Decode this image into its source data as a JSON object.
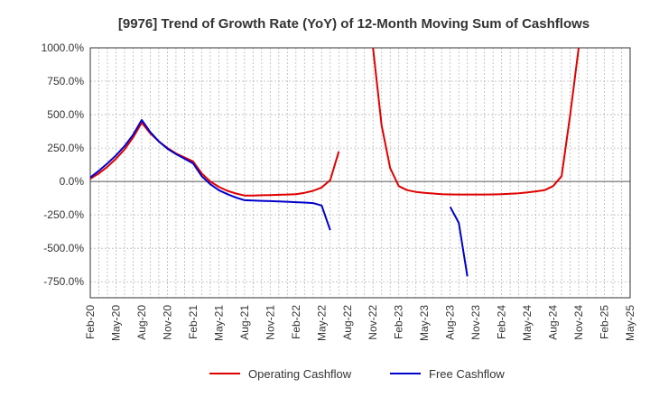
{
  "chart_data": {
    "type": "line",
    "title": "[9976]  Trend of Growth Rate (YoY) of 12-Month Moving Sum of Cashflows",
    "xlabel": "",
    "ylabel": "",
    "ylim": [
      -870,
      1000
    ],
    "yticks": [
      1000,
      750,
      500,
      250,
      0,
      -250,
      -500,
      -750
    ],
    "ytick_labels": [
      "1000.0%",
      "750.0%",
      "500.0%",
      "250.0%",
      "0.0%",
      "-250.0%",
      "-500.0%",
      "-750.0%"
    ],
    "xticks": [
      "Feb-20",
      "May-20",
      "Aug-20",
      "Nov-20",
      "Feb-21",
      "May-21",
      "Aug-21",
      "Nov-21",
      "Feb-22",
      "May-22",
      "Aug-22",
      "Nov-22",
      "Feb-23",
      "May-23",
      "Aug-23",
      "Nov-23",
      "Feb-24",
      "May-24",
      "Aug-24",
      "Nov-24",
      "Feb-25",
      "May-25"
    ],
    "x_range": [
      "2020-02",
      "2025-05"
    ],
    "grid": true,
    "legend_position": "bottom",
    "series": [
      {
        "name": "Operating Cashflow",
        "color": "#e00000",
        "points": [
          [
            "2020-02",
            20
          ],
          [
            "2020-03",
            60
          ],
          [
            "2020-04",
            110
          ],
          [
            "2020-05",
            170
          ],
          [
            "2020-06",
            240
          ],
          [
            "2020-07",
            330
          ],
          [
            "2020-08",
            440
          ],
          [
            "2020-09",
            360
          ],
          [
            "2020-10",
            300
          ],
          [
            "2020-11",
            250
          ],
          [
            "2020-12",
            210
          ],
          [
            "2021-01",
            180
          ],
          [
            "2021-02",
            150
          ],
          [
            "2021-03",
            60
          ],
          [
            "2021-04",
            0
          ],
          [
            "2021-05",
            -40
          ],
          [
            "2021-06",
            -70
          ],
          [
            "2021-07",
            -90
          ],
          [
            "2021-08",
            -105
          ],
          [
            "2021-09",
            -105
          ],
          [
            "2021-10",
            -103
          ],
          [
            "2021-11",
            -102
          ],
          [
            "2021-12",
            -100
          ],
          [
            "2022-01",
            -98
          ],
          [
            "2022-02",
            -95
          ],
          [
            "2022-03",
            -85
          ],
          [
            "2022-04",
            -70
          ],
          [
            "2022-05",
            -45
          ],
          [
            "2022-06",
            10
          ],
          [
            "2022-07",
            225
          ]
        ],
        "segments_after_gap": [
          [
            "2022-11",
            1000
          ],
          [
            "2022-12",
            420
          ],
          [
            "2023-01",
            100
          ],
          [
            "2023-02",
            -35
          ],
          [
            "2023-03",
            -65
          ],
          [
            "2023-04",
            -78
          ],
          [
            "2023-05",
            -85
          ],
          [
            "2023-06",
            -90
          ],
          [
            "2023-07",
            -95
          ],
          [
            "2023-08",
            -97
          ],
          [
            "2023-09",
            -98
          ],
          [
            "2023-10",
            -98
          ],
          [
            "2023-11",
            -98
          ],
          [
            "2023-12",
            -98
          ],
          [
            "2024-01",
            -97
          ],
          [
            "2024-02",
            -95
          ],
          [
            "2024-03",
            -92
          ],
          [
            "2024-04",
            -88
          ],
          [
            "2024-05",
            -82
          ],
          [
            "2024-06",
            -74
          ],
          [
            "2024-07",
            -65
          ],
          [
            "2024-08",
            -35
          ],
          [
            "2024-09",
            40
          ],
          [
            "2024-10",
            500
          ],
          [
            "2024-11",
            1000
          ]
        ]
      },
      {
        "name": "Free Cashflow",
        "color": "#0000cc",
        "points": [
          [
            "2020-02",
            30
          ],
          [
            "2020-03",
            80
          ],
          [
            "2020-04",
            135
          ],
          [
            "2020-05",
            195
          ],
          [
            "2020-06",
            265
          ],
          [
            "2020-07",
            350
          ],
          [
            "2020-08",
            460
          ],
          [
            "2020-09",
            370
          ],
          [
            "2020-10",
            300
          ],
          [
            "2020-11",
            245
          ],
          [
            "2020-12",
            205
          ],
          [
            "2021-01",
            170
          ],
          [
            "2021-02",
            135
          ],
          [
            "2021-03",
            40
          ],
          [
            "2021-04",
            -20
          ],
          [
            "2021-05",
            -65
          ],
          [
            "2021-06",
            -95
          ],
          [
            "2021-07",
            -120
          ],
          [
            "2021-08",
            -140
          ],
          [
            "2021-09",
            -142
          ],
          [
            "2021-10",
            -145
          ],
          [
            "2021-11",
            -147
          ],
          [
            "2021-12",
            -150
          ],
          [
            "2022-01",
            -152
          ],
          [
            "2022-02",
            -155
          ],
          [
            "2022-03",
            -158
          ],
          [
            "2022-04",
            -162
          ],
          [
            "2022-05",
            -180
          ],
          [
            "2022-06",
            -365
          ]
        ],
        "segments_after_gap": [
          [
            "2023-08",
            -190
          ],
          [
            "2023-09",
            -310
          ],
          [
            "2023-10",
            -710
          ]
        ]
      }
    ]
  }
}
